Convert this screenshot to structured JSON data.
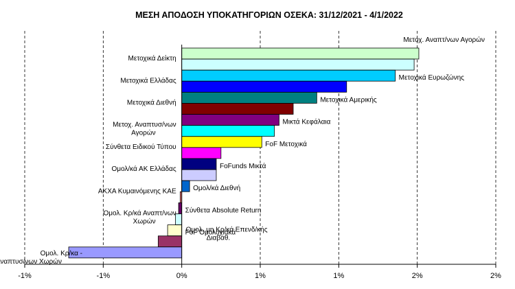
{
  "chart_data": {
    "type": "bar",
    "orientation": "horizontal",
    "title": "ΜΕΣΗ ΑΠΟΔΟΣΗ ΥΠΟΚΑΤΗΓΟΡΙΩΝ ΟΣΕΚΑ: 31/12/2021 - 4/1/2022",
    "xlabel": "",
    "ylabel": "",
    "xlim": [
      -1,
      2
    ],
    "xticks": [
      -1,
      -0.5,
      0,
      0.5,
      1,
      1.5,
      2
    ],
    "xtick_labels": [
      "-1%",
      "-1%",
      "0%",
      "1%",
      "1%",
      "2%",
      "2%"
    ],
    "grid": true,
    "categories": [
      "Μετοχ. Αναπτ/νων Αγορών",
      "Μετοχικά Δείκτη",
      "Μετοχικά Ευρωζώνης",
      "Μετοχικά Ελλάδας",
      "Μετοχικά Αμερικής",
      "Μετοχικά Διεθνή",
      "Μικτά Κεφάλαια",
      "Μετοχ. Αναπτυσ/νων Αγορών",
      "FoF Μετοχικά",
      "Σύνθετα Ειδικού Τύπου",
      "FoFunds Μικτά",
      "Ομολ/κά ΑΚ Ελλάδας",
      "Ομολ/κά Διεθνή",
      "ΑΚΧΑ Κυμαινόμενης ΚΑΕ",
      "Σύνθετα Absolute Return",
      "Ομολ. Κρ/κά Αναπτ/νων Χωρών",
      "FoF Ομολογιακά",
      "Ομολ. μη Κρ/κά Επενδ/κής Διαβάθ.",
      "Ομολ. Κρ/κα - Αναπτυσ/νων Χωρών"
    ],
    "values": [
      1.51,
      1.48,
      1.36,
      1.05,
      0.86,
      0.71,
      0.62,
      0.59,
      0.51,
      0.25,
      0.22,
      0.22,
      0.05,
      -0.01,
      -0.02,
      -0.04,
      -0.09,
      -0.15,
      -0.72
    ],
    "colors": [
      "#ccffcc",
      "#ccffff",
      "#00ccff",
      "#0000ff",
      "#008080",
      "#800000",
      "#800080",
      "#00ffff",
      "#ffff00",
      "#ff00ff",
      "#000080",
      "#ccccff",
      "#0066cc",
      "#ff8080",
      "#660066",
      "#ccffff",
      "#ffffcc",
      "#993366",
      "#9999ff"
    ],
    "label_side": [
      "right",
      "left",
      "right",
      "left",
      "right",
      "left",
      "right",
      "left",
      "right",
      "left",
      "right",
      "left",
      "right",
      "left",
      "right",
      "left",
      "right",
      "right",
      "left"
    ]
  }
}
